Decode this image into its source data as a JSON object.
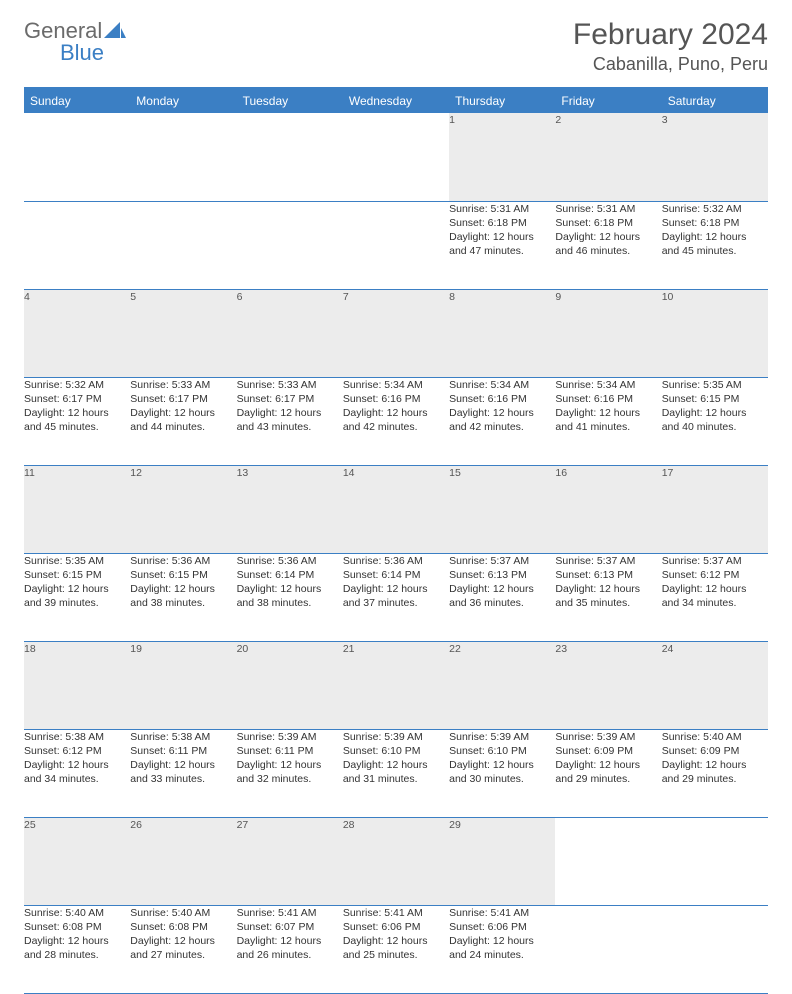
{
  "logo": {
    "text1": "General",
    "text2": "Blue"
  },
  "title": "February 2024",
  "location": "Cabanilla, Puno, Peru",
  "colors": {
    "header_bg": "#3b7fc4",
    "header_text": "#ffffff",
    "daynum_bg": "#ececec",
    "border": "#3b7fc4",
    "text": "#333333",
    "logo_gray": "#6b6b6b",
    "logo_blue": "#3b7fc4"
  },
  "weekdays": [
    "Sunday",
    "Monday",
    "Tuesday",
    "Wednesday",
    "Thursday",
    "Friday",
    "Saturday"
  ],
  "weeks": [
    [
      null,
      null,
      null,
      null,
      {
        "n": "1",
        "sr": "5:31 AM",
        "ss": "6:18 PM",
        "d1": "12 hours",
        "d2": "and 47 minutes."
      },
      {
        "n": "2",
        "sr": "5:31 AM",
        "ss": "6:18 PM",
        "d1": "12 hours",
        "d2": "and 46 minutes."
      },
      {
        "n": "3",
        "sr": "5:32 AM",
        "ss": "6:18 PM",
        "d1": "12 hours",
        "d2": "and 45 minutes."
      }
    ],
    [
      {
        "n": "4",
        "sr": "5:32 AM",
        "ss": "6:17 PM",
        "d1": "12 hours",
        "d2": "and 45 minutes."
      },
      {
        "n": "5",
        "sr": "5:33 AM",
        "ss": "6:17 PM",
        "d1": "12 hours",
        "d2": "and 44 minutes."
      },
      {
        "n": "6",
        "sr": "5:33 AM",
        "ss": "6:17 PM",
        "d1": "12 hours",
        "d2": "and 43 minutes."
      },
      {
        "n": "7",
        "sr": "5:34 AM",
        "ss": "6:16 PM",
        "d1": "12 hours",
        "d2": "and 42 minutes."
      },
      {
        "n": "8",
        "sr": "5:34 AM",
        "ss": "6:16 PM",
        "d1": "12 hours",
        "d2": "and 42 minutes."
      },
      {
        "n": "9",
        "sr": "5:34 AM",
        "ss": "6:16 PM",
        "d1": "12 hours",
        "d2": "and 41 minutes."
      },
      {
        "n": "10",
        "sr": "5:35 AM",
        "ss": "6:15 PM",
        "d1": "12 hours",
        "d2": "and 40 minutes."
      }
    ],
    [
      {
        "n": "11",
        "sr": "5:35 AM",
        "ss": "6:15 PM",
        "d1": "12 hours",
        "d2": "and 39 minutes."
      },
      {
        "n": "12",
        "sr": "5:36 AM",
        "ss": "6:15 PM",
        "d1": "12 hours",
        "d2": "and 38 minutes."
      },
      {
        "n": "13",
        "sr": "5:36 AM",
        "ss": "6:14 PM",
        "d1": "12 hours",
        "d2": "and 38 minutes."
      },
      {
        "n": "14",
        "sr": "5:36 AM",
        "ss": "6:14 PM",
        "d1": "12 hours",
        "d2": "and 37 minutes."
      },
      {
        "n": "15",
        "sr": "5:37 AM",
        "ss": "6:13 PM",
        "d1": "12 hours",
        "d2": "and 36 minutes."
      },
      {
        "n": "16",
        "sr": "5:37 AM",
        "ss": "6:13 PM",
        "d1": "12 hours",
        "d2": "and 35 minutes."
      },
      {
        "n": "17",
        "sr": "5:37 AM",
        "ss": "6:12 PM",
        "d1": "12 hours",
        "d2": "and 34 minutes."
      }
    ],
    [
      {
        "n": "18",
        "sr": "5:38 AM",
        "ss": "6:12 PM",
        "d1": "12 hours",
        "d2": "and 34 minutes."
      },
      {
        "n": "19",
        "sr": "5:38 AM",
        "ss": "6:11 PM",
        "d1": "12 hours",
        "d2": "and 33 minutes."
      },
      {
        "n": "20",
        "sr": "5:39 AM",
        "ss": "6:11 PM",
        "d1": "12 hours",
        "d2": "and 32 minutes."
      },
      {
        "n": "21",
        "sr": "5:39 AM",
        "ss": "6:10 PM",
        "d1": "12 hours",
        "d2": "and 31 minutes."
      },
      {
        "n": "22",
        "sr": "5:39 AM",
        "ss": "6:10 PM",
        "d1": "12 hours",
        "d2": "and 30 minutes."
      },
      {
        "n": "23",
        "sr": "5:39 AM",
        "ss": "6:09 PM",
        "d1": "12 hours",
        "d2": "and 29 minutes."
      },
      {
        "n": "24",
        "sr": "5:40 AM",
        "ss": "6:09 PM",
        "d1": "12 hours",
        "d2": "and 29 minutes."
      }
    ],
    [
      {
        "n": "25",
        "sr": "5:40 AM",
        "ss": "6:08 PM",
        "d1": "12 hours",
        "d2": "and 28 minutes."
      },
      {
        "n": "26",
        "sr": "5:40 AM",
        "ss": "6:08 PM",
        "d1": "12 hours",
        "d2": "and 27 minutes."
      },
      {
        "n": "27",
        "sr": "5:41 AM",
        "ss": "6:07 PM",
        "d1": "12 hours",
        "d2": "and 26 minutes."
      },
      {
        "n": "28",
        "sr": "5:41 AM",
        "ss": "6:06 PM",
        "d1": "12 hours",
        "d2": "and 25 minutes."
      },
      {
        "n": "29",
        "sr": "5:41 AM",
        "ss": "6:06 PM",
        "d1": "12 hours",
        "d2": "and 24 minutes."
      },
      null,
      null
    ]
  ]
}
